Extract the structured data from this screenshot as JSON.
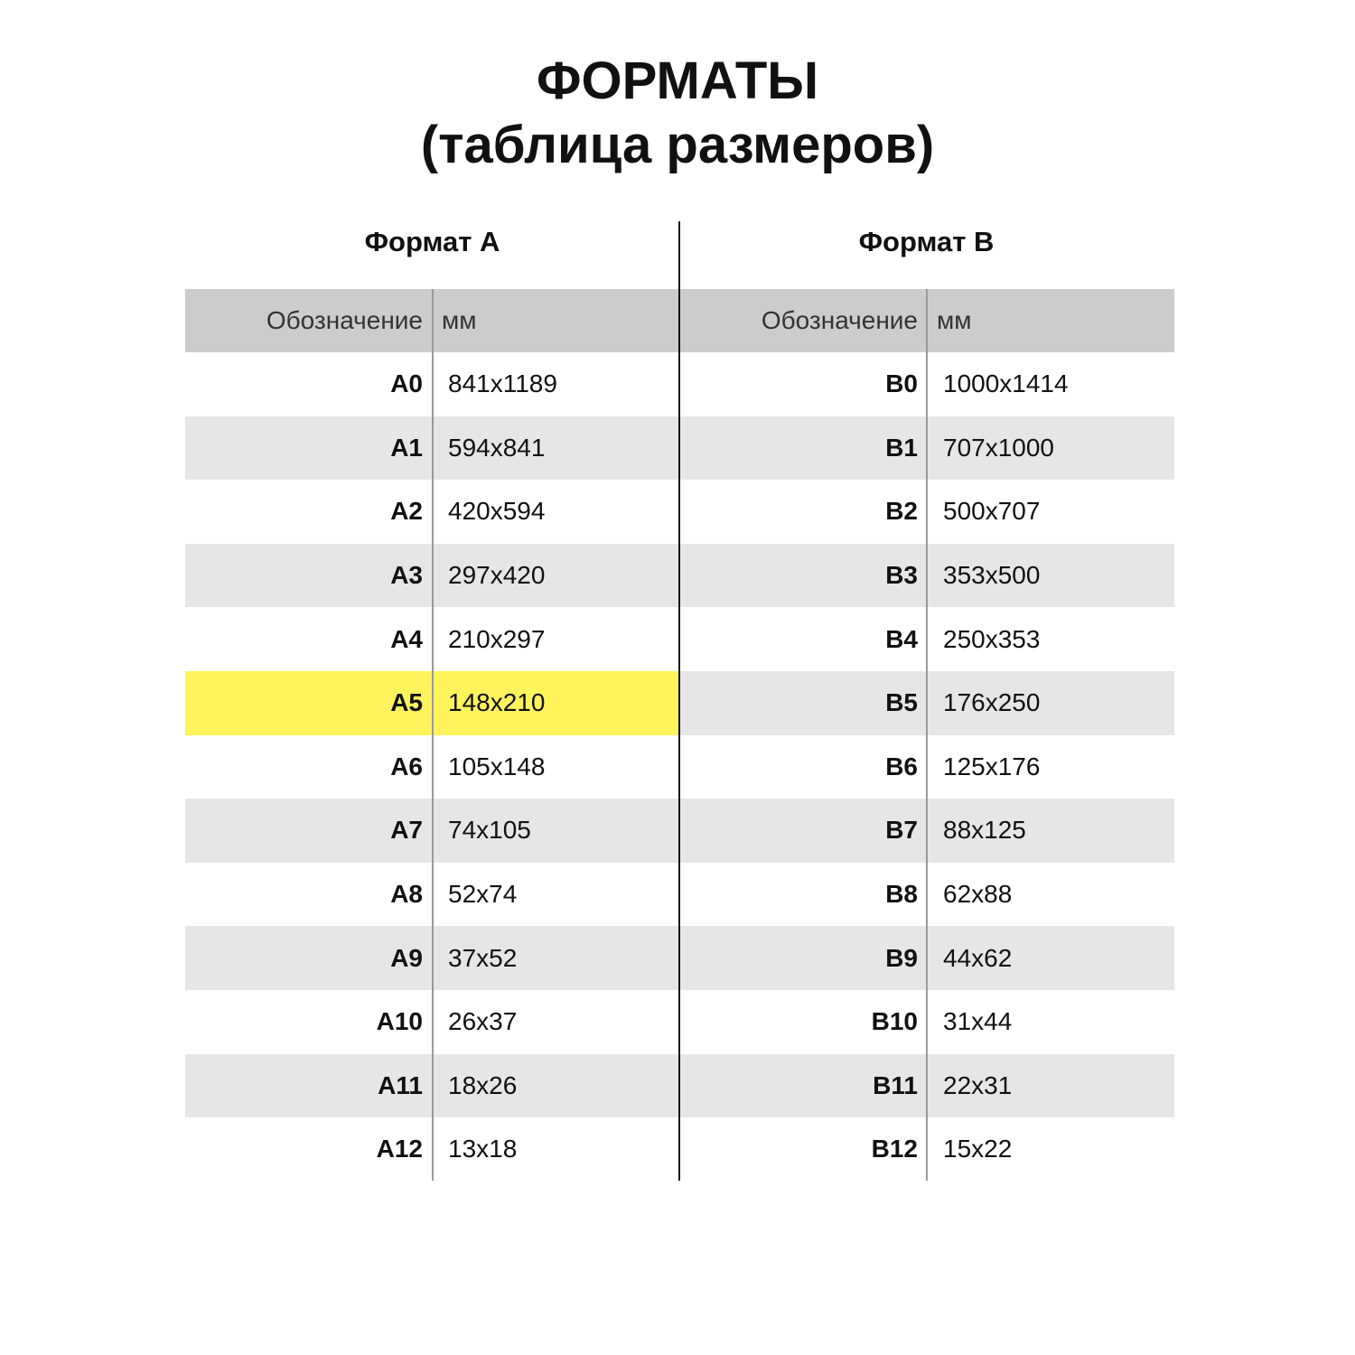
{
  "title": {
    "line1": "ФОРМАТЫ",
    "line2": "(таблица размеров)"
  },
  "colors": {
    "header_bg": "#cccccc",
    "alt_row_bg": "#e6e6e7",
    "highlight": "#fff35c"
  },
  "format_a": {
    "heading": "Формат А",
    "col_designation": "Обозначение",
    "col_mm": "мм",
    "highlighted": "A5",
    "rows": [
      {
        "name": "A0",
        "mm": "841x1189"
      },
      {
        "name": "A1",
        "mm": "594x841"
      },
      {
        "name": "A2",
        "mm": "420x594"
      },
      {
        "name": "A3",
        "mm": "297x420"
      },
      {
        "name": "A4",
        "mm": "210x297"
      },
      {
        "name": "A5",
        "mm": "148x210"
      },
      {
        "name": "A6",
        "mm": "105x148"
      },
      {
        "name": "A7",
        "mm": "74x105"
      },
      {
        "name": "A8",
        "mm": "52x74"
      },
      {
        "name": "A9",
        "mm": "37x52"
      },
      {
        "name": "A10",
        "mm": "26x37"
      },
      {
        "name": "A11",
        "mm": "18x26"
      },
      {
        "name": "A12",
        "mm": "13x18"
      }
    ]
  },
  "format_b": {
    "heading": "Формат В",
    "col_designation": "Обозначение",
    "col_mm": "мм",
    "rows": [
      {
        "name": "B0",
        "mm": "1000x1414"
      },
      {
        "name": "B1",
        "mm": "707x1000"
      },
      {
        "name": "B2",
        "mm": "500x707"
      },
      {
        "name": "B3",
        "mm": "353x500"
      },
      {
        "name": "B4",
        "mm": "250x353"
      },
      {
        "name": "B5",
        "mm": "176x250"
      },
      {
        "name": "B6",
        "mm": "125x176"
      },
      {
        "name": "B7",
        "mm": "88x125"
      },
      {
        "name": "B8",
        "mm": "62x88"
      },
      {
        "name": "B9",
        "mm": "44x62"
      },
      {
        "name": "B10",
        "mm": "31x44"
      },
      {
        "name": "B11",
        "mm": "22x31"
      },
      {
        "name": "B12",
        "mm": "15x22"
      }
    ]
  }
}
